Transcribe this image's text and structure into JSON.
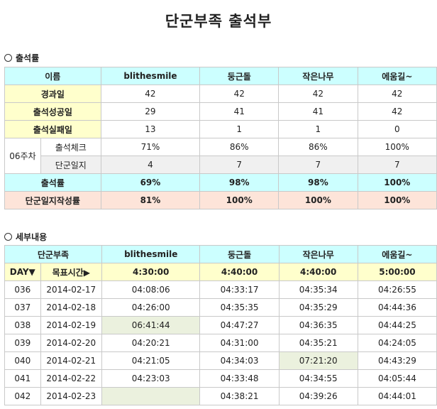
{
  "title": "단군부족 출석부",
  "summary": {
    "section_label": "출석률",
    "header": [
      "이름",
      "blithesmile",
      "둥근돌",
      "작은나무",
      "에움길~"
    ],
    "rows": [
      {
        "label": "경과일",
        "values": [
          "42",
          "42",
          "42",
          "42"
        ]
      },
      {
        "label": "출석성공일",
        "values": [
          "29",
          "41",
          "41",
          "42"
        ]
      },
      {
        "label": "출석실패일",
        "values": [
          "13",
          "1",
          "1",
          "0"
        ]
      }
    ],
    "week": {
      "label": "06주차",
      "check_label": "출석체크",
      "check_values": [
        "71%",
        "86%",
        "86%",
        "100%"
      ],
      "journal_label": "단군일지",
      "journal_values": [
        "4",
        "7",
        "7",
        "7"
      ]
    },
    "rate": {
      "label": "출석률",
      "values": [
        "69%",
        "98%",
        "98%",
        "100%"
      ]
    },
    "journal_rate": {
      "label": "단군일지작성률",
      "values": [
        "81%",
        "100%",
        "100%",
        "100%"
      ]
    }
  },
  "detail": {
    "section_label": "세부내용",
    "header": [
      "단군부족",
      "blithesmile",
      "둥근돌",
      "작은나무",
      "에움길~"
    ],
    "target": {
      "day_label": "DAY▼",
      "target_label": "목표시간▶",
      "values": [
        "4:30:00",
        "4:40:00",
        "4:40:00",
        "5:00:00"
      ]
    },
    "rows": [
      {
        "day": "036",
        "date": "2014-02-17",
        "times": [
          "04:08:06",
          "04:33:17",
          "04:35:34",
          "04:26:55"
        ]
      },
      {
        "day": "037",
        "date": "2014-02-18",
        "times": [
          "04:26:00",
          "04:35:35",
          "04:35:29",
          "04:44:36"
        ]
      },
      {
        "day": "038",
        "date": "2014-02-19",
        "times": [
          "06:41:44",
          "04:47:27",
          "04:36:35",
          "04:44:25"
        ]
      },
      {
        "day": "039",
        "date": "2014-02-20",
        "times": [
          "04:20:21",
          "04:31:00",
          "04:35:21",
          "04:24:05"
        ]
      },
      {
        "day": "040",
        "date": "2014-02-21",
        "times": [
          "04:21:05",
          "04:34:03",
          "07:21:20",
          "04:43:29"
        ]
      },
      {
        "day": "041",
        "date": "2014-02-22",
        "times": [
          "04:23:03",
          "04:33:48",
          "04:34:55",
          "04:05:44"
        ]
      },
      {
        "day": "042",
        "date": "2014-02-23",
        "times": [
          "",
          "04:38:21",
          "04:39:26",
          "04:44:01"
        ]
      }
    ]
  }
}
